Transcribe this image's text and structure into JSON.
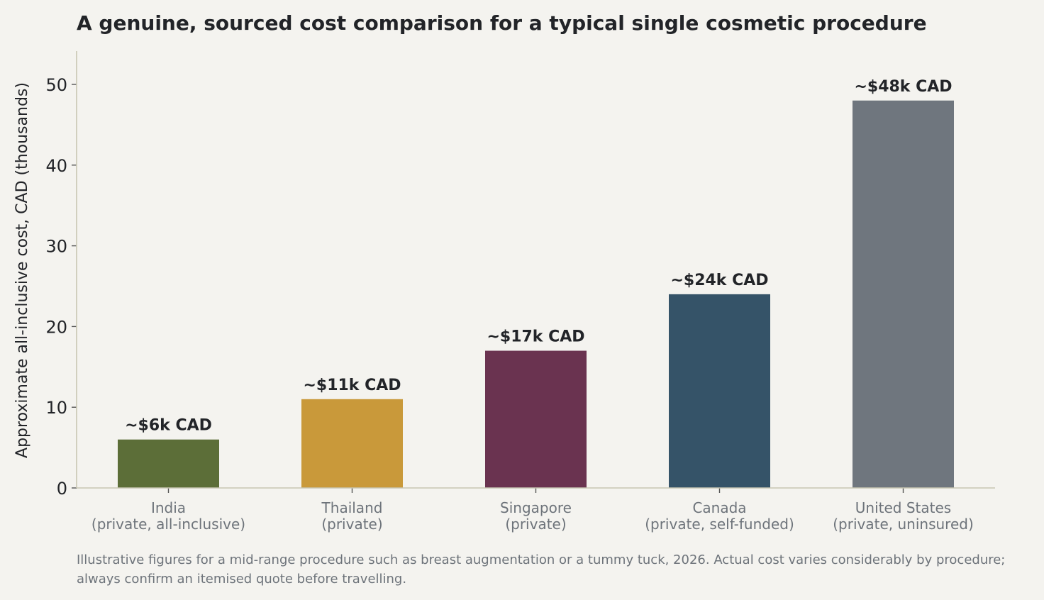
{
  "chart_data": {
    "type": "bar",
    "title": "A genuine, sourced cost comparison for a typical single cosmetic procedure",
    "ylabel": "Approximate all-inclusive cost, CAD (thousands)",
    "xlabel": "",
    "ylim": [
      0,
      54
    ],
    "yticks": [
      0,
      10,
      20,
      30,
      40,
      50
    ],
    "categories": [
      [
        "India",
        "(private, all-inclusive)"
      ],
      [
        "Thailand",
        "(private)"
      ],
      [
        "Singapore",
        "(private)"
      ],
      [
        "Canada",
        "(private, self-funded)"
      ],
      [
        "United States",
        "(private, uninsured)"
      ]
    ],
    "values": [
      6,
      11,
      17,
      24,
      48
    ],
    "data_labels": [
      "~$6k CAD",
      "~$11k CAD",
      "~$17k CAD",
      "~$24k CAD",
      "~$48k CAD"
    ],
    "colors": [
      "#5c6e38",
      "#c9993a",
      "#6a3350",
      "#355368",
      "#6f767e"
    ],
    "grid": false,
    "legend": "none"
  },
  "footnote": "Illustrative figures for a mid-range procedure such as breast augmentation or a tummy tuck, 2026. Actual cost varies considerably by procedure; always confirm an itemised quote before travelling."
}
